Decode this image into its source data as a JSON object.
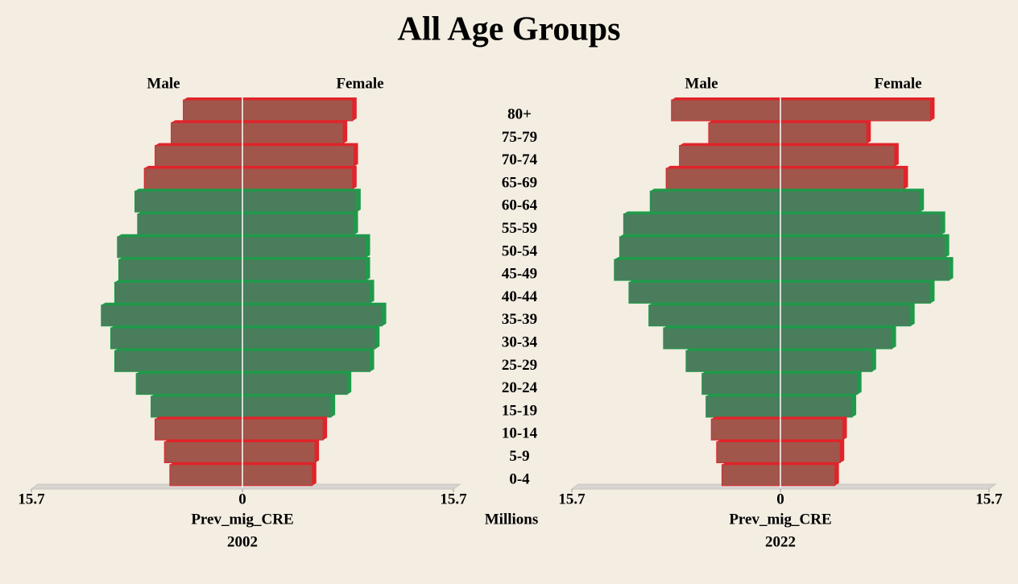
{
  "title": "All Age Groups",
  "unit_label": "Millions",
  "categories": [
    "80+",
    "75-79",
    "70-74",
    "65-69",
    "60-64",
    "55-59",
    "50-54",
    "45-49",
    "40-44",
    "35-39",
    "30-34",
    "25-29",
    "20-24",
    "15-19",
    "10-14",
    "5-9",
    "0-4"
  ],
  "category_colors": [
    "#a0564b",
    "#a0564b",
    "#a0564b",
    "#a0564b",
    "#4a7d5c",
    "#4a7d5c",
    "#4a7d5c",
    "#4a7d5c",
    "#4a7d5c",
    "#4a7d5c",
    "#4a7d5c",
    "#4a7d5c",
    "#4a7d5c",
    "#4a7d5c",
    "#a0564b",
    "#a0564b",
    "#a0564b"
  ],
  "category_edge_colors": [
    "#e0242a",
    "#e0242a",
    "#e0242a",
    "#e0242a",
    "#1f9a4a",
    "#1f9a4a",
    "#1f9a4a",
    "#1f9a4a",
    "#1f9a4a",
    "#1f9a4a",
    "#1f9a4a",
    "#1f9a4a",
    "#1f9a4a",
    "#1f9a4a",
    "#e0242a",
    "#e0242a",
    "#e0242a"
  ],
  "chart_data": [
    {
      "type": "pyramid",
      "xlabel": "Prev_mig_CRE",
      "subtitle": "2002",
      "xlim": [
        -15.7,
        15.7
      ],
      "xticks": [
        {
          "value": -15.7,
          "label": "15.7"
        },
        0,
        15.7
      ],
      "series": [
        {
          "name": "Male",
          "values": [
            4.4,
            5.3,
            6.5,
            7.3,
            8.0,
            7.8,
            9.3,
            9.2,
            9.5,
            10.5,
            9.8,
            9.5,
            7.9,
            6.8,
            6.5,
            5.8,
            5.4
          ]
        },
        {
          "name": "Female",
          "values": [
            8.2,
            7.5,
            8.3,
            8.2,
            8.5,
            8.3,
            9.2,
            9.2,
            9.5,
            10.4,
            9.9,
            9.5,
            7.8,
            6.6,
            6.0,
            5.4,
            5.2
          ]
        }
      ]
    },
    {
      "type": "pyramid",
      "xlabel": "Prev_mig_CRE",
      "subtitle": "2022",
      "xlim": [
        -15.7,
        15.7
      ],
      "xticks": [
        {
          "value": -15.7,
          "label": "15.7"
        },
        0,
        15.7
      ],
      "series": [
        {
          "name": "Male",
          "values": [
            8.2,
            5.4,
            7.6,
            8.6,
            9.8,
            11.8,
            12.1,
            12.5,
            11.4,
            9.9,
            8.8,
            7.1,
            5.9,
            5.6,
            5.2,
            4.8,
            4.4
          ]
        },
        {
          "name": "Female",
          "values": [
            11.3,
            6.5,
            8.6,
            9.3,
            10.5,
            12.1,
            12.4,
            12.7,
            11.3,
            9.8,
            8.4,
            6.9,
            5.8,
            5.4,
            4.7,
            4.5,
            4.1
          ]
        }
      ]
    }
  ]
}
